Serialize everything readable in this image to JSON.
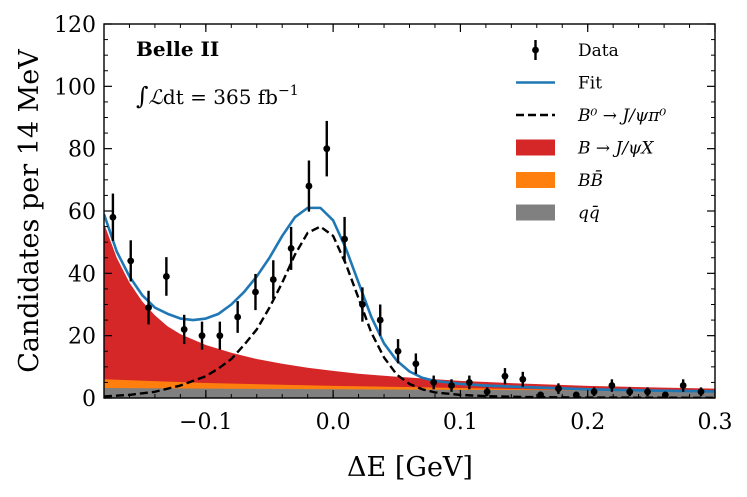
{
  "chart_data": {
    "type": "line",
    "title": "",
    "xlabel": "ΔE [GeV]",
    "ylabel": "Candidates per 14 MeV",
    "xlim": [
      -0.18,
      0.3
    ],
    "ylim": [
      0,
      120
    ],
    "x_ticks": [
      -0.1,
      0.0,
      0.1,
      0.2,
      0.3
    ],
    "x_tick_labels": [
      "−0.1",
      "0.0",
      "0.1",
      "0.2",
      "0.3"
    ],
    "y_ticks": [
      0,
      20,
      40,
      60,
      80,
      100,
      120
    ],
    "y_tick_labels": [
      "0",
      "20",
      "40",
      "60",
      "80",
      "100",
      "120"
    ],
    "grid": false,
    "legend_position": "top-right",
    "annotations": {
      "experiment": "Belle II",
      "luminosity_prefix": "∫",
      "luminosity_L": "ℒ",
      "luminosity_dt": "dt",
      "luminosity_value": " = 365 fb",
      "luminosity_exp": "−1"
    },
    "series": [
      {
        "name": "Data",
        "kind": "points",
        "color": "#000000",
        "x": [
          -0.173,
          -0.159,
          -0.145,
          -0.131,
          -0.117,
          -0.103,
          -0.089,
          -0.075,
          -0.061,
          -0.047,
          -0.033,
          -0.019,
          -0.005,
          0.009,
          0.023,
          0.037,
          0.051,
          0.065,
          0.079,
          0.093,
          0.107,
          0.121,
          0.135,
          0.149,
          0.163,
          0.177,
          0.191,
          0.205,
          0.219,
          0.233,
          0.247,
          0.261,
          0.275,
          0.289
        ],
        "y": [
          58,
          44,
          29,
          39,
          22,
          20,
          20,
          26,
          34,
          38,
          48,
          68,
          80,
          51,
          30,
          25,
          15,
          11,
          5,
          4,
          5,
          2,
          7,
          6,
          1,
          3,
          1,
          2,
          4,
          2,
          2,
          1,
          4,
          2
        ],
        "err": [
          7.6,
          6.6,
          5.4,
          6.2,
          4.7,
          4.5,
          4.5,
          5.1,
          5.8,
          6.2,
          6.9,
          8.2,
          8.9,
          7.1,
          5.5,
          5.0,
          3.9,
          3.3,
          2.2,
          2.0,
          2.2,
          1.4,
          2.6,
          2.4,
          1.0,
          1.7,
          1.0,
          1.4,
          2.0,
          1.4,
          1.4,
          1.0,
          2.0,
          1.4
        ]
      },
      {
        "name": "Fit",
        "kind": "line",
        "color": "#1f77b4",
        "x": [
          -0.18,
          -0.17,
          -0.16,
          -0.15,
          -0.14,
          -0.13,
          -0.12,
          -0.11,
          -0.1,
          -0.09,
          -0.08,
          -0.07,
          -0.06,
          -0.05,
          -0.04,
          -0.03,
          -0.02,
          -0.01,
          0.0,
          0.01,
          0.02,
          0.03,
          0.04,
          0.05,
          0.06,
          0.07,
          0.08,
          0.1,
          0.12,
          0.15,
          0.2,
          0.25,
          0.3
        ],
        "y": [
          59,
          47,
          39,
          33,
          29,
          27,
          25.5,
          25,
          25.5,
          27,
          30,
          34,
          39,
          45,
          52,
          58,
          61,
          61,
          57,
          48,
          37,
          26,
          17.5,
          12,
          8.5,
          6.5,
          5.5,
          4.5,
          4,
          3.5,
          2.8,
          2.4,
          2.1
        ]
      },
      {
        "name": "B⁰ → J/ψπ⁰",
        "kind": "dashed-line",
        "color": "#000000",
        "x": [
          -0.18,
          -0.16,
          -0.14,
          -0.12,
          -0.1,
          -0.09,
          -0.08,
          -0.07,
          -0.06,
          -0.05,
          -0.04,
          -0.03,
          -0.02,
          -0.01,
          0.0,
          0.01,
          0.02,
          0.03,
          0.04,
          0.05,
          0.06,
          0.07,
          0.08,
          0.1,
          0.12,
          0.15,
          0.2,
          0.25,
          0.3
        ],
        "y": [
          0.5,
          1,
          2,
          4,
          7,
          9.5,
          12.5,
          17,
          22,
          29,
          37,
          46,
          53,
          55,
          52,
          43,
          32,
          21,
          13,
          7.5,
          4.5,
          2.8,
          1.8,
          1,
          0.6,
          0.3,
          0.15,
          0.1,
          0.05
        ]
      },
      {
        "name": "B → J/ψX",
        "kind": "area",
        "color": "#d62728",
        "x": [
          -0.18,
          -0.17,
          -0.16,
          -0.15,
          -0.14,
          -0.13,
          -0.12,
          -0.1,
          -0.08,
          -0.06,
          -0.04,
          -0.02,
          0.0,
          0.02,
          0.05,
          0.1,
          0.15,
          0.2,
          0.25,
          0.3
        ],
        "y": [
          56,
          45,
          37,
          31,
          26.5,
          23,
          20.5,
          17,
          14.5,
          12.5,
          11,
          9.7,
          8.7,
          7.8,
          6.8,
          5.5,
          4.6,
          3.9,
          3.4,
          3.0
        ]
      },
      {
        "name": "BB̄",
        "kind": "area",
        "color": "#ff7f0e",
        "x": [
          -0.18,
          -0.1,
          0.0,
          0.1,
          0.2,
          0.3
        ],
        "y": [
          6,
          4.8,
          3.9,
          3.2,
          2.5,
          2.0
        ]
      },
      {
        "name": "qq̄",
        "kind": "area",
        "color": "#808080",
        "x": [
          -0.18,
          0.0,
          0.3
        ],
        "y": [
          3.2,
          2.8,
          2.3
        ]
      }
    ]
  }
}
